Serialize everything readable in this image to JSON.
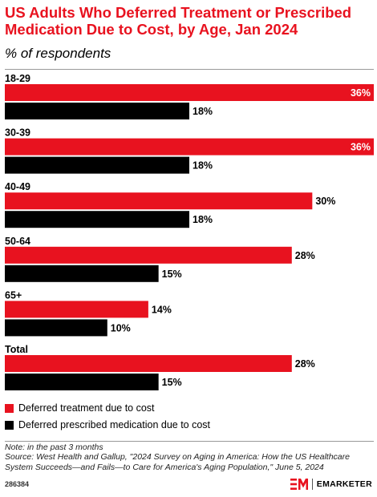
{
  "header": {
    "title": "US Adults Who Deferred Treatment or Prescribed Medication Due to Cost, by Age, Jan 2024",
    "subtitle": "% of respondents"
  },
  "chart_data": {
    "type": "bar",
    "orientation": "horizontal",
    "categories": [
      "18-29",
      "30-39",
      "40-49",
      "50-64",
      "65+",
      "Total"
    ],
    "series": [
      {
        "name": "Deferred treatment due to cost",
        "color": "#e8121f",
        "values": [
          36,
          36,
          30,
          28,
          14,
          28
        ],
        "labels": [
          "36%",
          "36%",
          "30%",
          "28%",
          "14%",
          "28%"
        ]
      },
      {
        "name": "Deferred prescribed medication due to cost",
        "color": "#000000",
        "values": [
          18,
          18,
          18,
          15,
          10,
          15
        ],
        "labels": [
          "18%",
          "18%",
          "18%",
          "15%",
          "10%",
          "15%"
        ]
      }
    ],
    "value_unit": "%",
    "grid": false,
    "legend_position": "bottom"
  },
  "footer": {
    "note": "Note: in the past 3 months",
    "source": "Source: West Health and Gallup, \"2024 Survey on Aging in America: How the US Healthcare System Succeeds—and Fails—to Care for America's Aging Population,\" June 5, 2024",
    "chart_id": "286384",
    "brand": "EMARKETER"
  }
}
